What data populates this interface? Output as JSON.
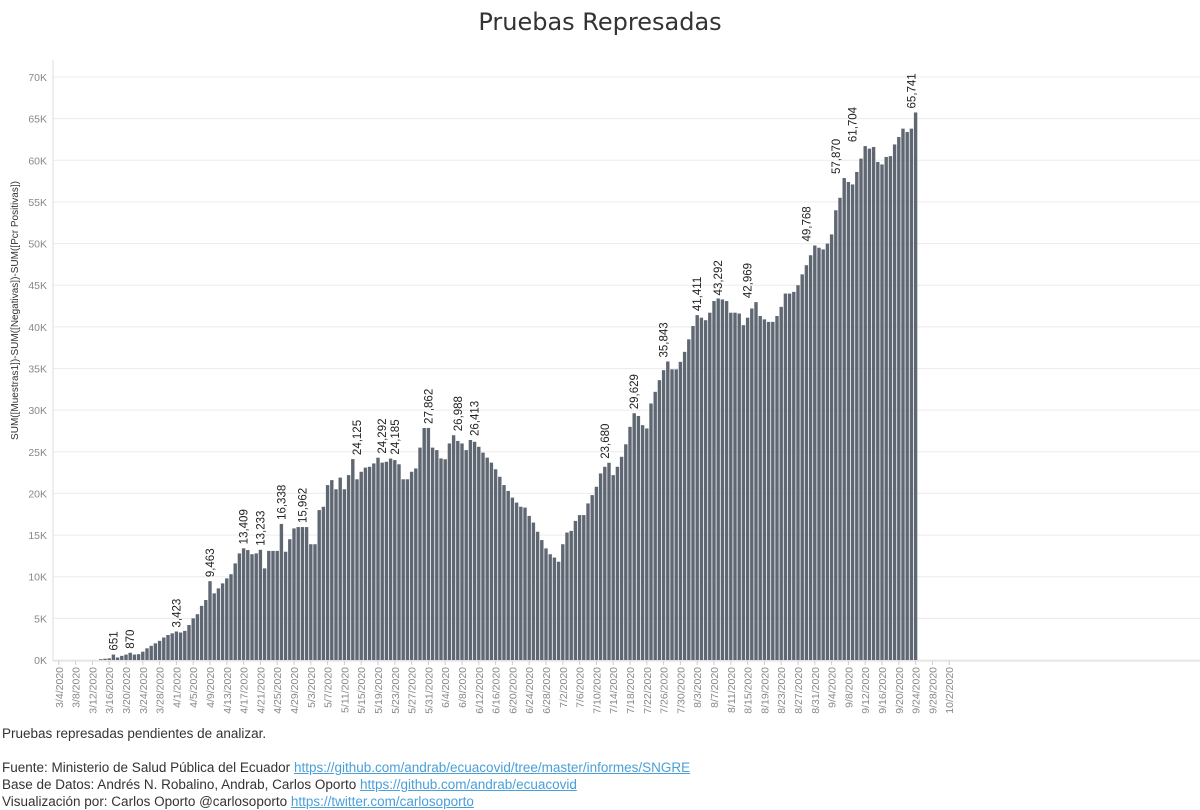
{
  "chart_data": {
    "type": "bar",
    "title": "Pruebas Represadas",
    "ylabel": "SUM([Muestras1])-SUM([Negativas])-SUM([Pcr Positivas])",
    "xlabel": "",
    "ylim": [
      0,
      70000
    ],
    "y_ticks": [
      "0K",
      "5K",
      "10K",
      "15K",
      "20K",
      "25K",
      "30K",
      "35K",
      "40K",
      "45K",
      "50K",
      "55K",
      "60K",
      "65K",
      "70K"
    ],
    "x_start": "3/4/2020",
    "x_tick_labels": [
      "3/4/2020",
      "3/8/2020",
      "3/12/2020",
      "3/16/2020",
      "3/20/2020",
      "3/24/2020",
      "3/28/2020",
      "4/1/2020",
      "4/5/2020",
      "4/9/2020",
      "4/13/2020",
      "4/17/2020",
      "4/21/2020",
      "4/25/2020",
      "4/29/2020",
      "5/3/2020",
      "5/7/2020",
      "5/11/2020",
      "5/15/2020",
      "5/19/2020",
      "5/23/2020",
      "5/27/2020",
      "5/31/2020",
      "6/4/2020",
      "6/8/2020",
      "6/12/2020",
      "6/16/2020",
      "6/20/2020",
      "6/24/2020",
      "6/28/2020",
      "7/2/2020",
      "7/6/2020",
      "7/10/2020",
      "7/14/2020",
      "7/18/2020",
      "7/22/2020",
      "7/26/2020",
      "7/30/2020",
      "8/3/2020",
      "8/7/2020",
      "8/11/2020",
      "8/15/2020",
      "8/19/2020",
      "8/23/2020",
      "8/27/2020",
      "8/31/2020",
      "9/4/2020",
      "9/8/2020",
      "9/12/2020",
      "9/16/2020",
      "9/20/2020",
      "9/24/2020",
      "9/28/2020",
      "10/2/2020"
    ],
    "grid": true,
    "color": "#5f6773",
    "values": [
      0,
      0,
      0,
      0,
      0,
      0,
      0,
      0,
      0,
      0,
      100,
      150,
      200,
      651,
      300,
      500,
      650,
      870,
      650,
      700,
      1000,
      1400,
      1700,
      2000,
      2300,
      2700,
      3000,
      3200,
      3423,
      3300,
      3500,
      4200,
      5000,
      5500,
      6500,
      7200,
      9463,
      8000,
      8600,
      9200,
      9800,
      10300,
      11600,
      12800,
      13409,
      13200,
      12700,
      12800,
      13233,
      11000,
      13100,
      13100,
      13100,
      16338,
      13000,
      14500,
      15800,
      15962,
      15962,
      15962,
      13900,
      13900,
      18000,
      18400,
      21000,
      21600,
      20500,
      21900,
      20500,
      22200,
      24125,
      21700,
      22600,
      23100,
      23200,
      23600,
      24292,
      23700,
      23800,
      24185,
      24000,
      23500,
      21700,
      21700,
      22600,
      23000,
      25500,
      27862,
      27862,
      25500,
      25200,
      24200,
      24100,
      26000,
      26988,
      26300,
      26000,
      25200,
      26413,
      26200,
      25600,
      24900,
      24300,
      23700,
      22900,
      22000,
      21000,
      20300,
      19500,
      18900,
      18400,
      18300,
      17300,
      16500,
      15400,
      14400,
      13400,
      12700,
      12300,
      11800,
      13900,
      15300,
      15500,
      16700,
      17400,
      17400,
      18800,
      19800,
      20800,
      22400,
      23200,
      23680,
      22200,
      23200,
      24400,
      25900,
      28000,
      29629,
      29300,
      28200,
      27800,
      30800,
      32200,
      33600,
      34800,
      35843,
      34900,
      34900,
      35800,
      37000,
      38500,
      40100,
      41411,
      41100,
      40800,
      41700,
      43100,
      43400,
      43292,
      43100,
      41700,
      41700,
      41600,
      40200,
      41100,
      42200,
      42969,
      41300,
      40900,
      40600,
      40600,
      41300,
      42400,
      44000,
      44000,
      44200,
      45000,
      46300,
      47400,
      48600,
      49768,
      49500,
      49300,
      50000,
      51100,
      54000,
      55500,
      57870,
      57400,
      57100,
      58600,
      60200,
      61704,
      61400,
      61600,
      59800,
      59500,
      60400,
      60500,
      61900,
      62800,
      63800,
      63400,
      63800,
      65741
    ],
    "labeled_points": [
      {
        "date": "3/17/2020",
        "value": 651,
        "label": "651"
      },
      {
        "date": "3/21/2020",
        "value": 870,
        "label": "870"
      },
      {
        "date": "4/1/2020",
        "value": 3423,
        "label": "3,423"
      },
      {
        "date": "4/9/2020",
        "value": 9463,
        "label": "9,463"
      },
      {
        "date": "4/17/2020",
        "value": 13409,
        "label": "13,409"
      },
      {
        "date": "4/21/2020",
        "value": 13233,
        "label": "13,233"
      },
      {
        "date": "4/26/2020",
        "value": 16338,
        "label": "16,338"
      },
      {
        "date": "5/1/2020",
        "value": 15962,
        "label": "15,962"
      },
      {
        "date": "5/14/2020",
        "value": 24125,
        "label": "24,125"
      },
      {
        "date": "5/20/2020",
        "value": 24292,
        "label": "24,292"
      },
      {
        "date": "5/23/2020",
        "value": 24185,
        "label": "24,185"
      },
      {
        "date": "5/31/2020",
        "value": 27862,
        "label": "27,862"
      },
      {
        "date": "6/7/2020",
        "value": 26988,
        "label": "26,988"
      },
      {
        "date": "6/11/2020",
        "value": 26413,
        "label": "26,413"
      },
      {
        "date": "7/12/2020",
        "value": 23680,
        "label": "23,680"
      },
      {
        "date": "7/19/2020",
        "value": 29629,
        "label": "29,629"
      },
      {
        "date": "7/26/2020",
        "value": 35843,
        "label": "35,843"
      },
      {
        "date": "8/3/2020",
        "value": 41411,
        "label": "41,411"
      },
      {
        "date": "8/8/2020",
        "value": 43292,
        "label": "43,292"
      },
      {
        "date": "8/15/2020",
        "value": 42969,
        "label": "42,969"
      },
      {
        "date": "8/29/2020",
        "value": 49768,
        "label": "49,768"
      },
      {
        "date": "9/5/2020",
        "value": 57870,
        "label": "57,870"
      },
      {
        "date": "9/9/2020",
        "value": 61704,
        "label": "61,704"
      },
      {
        "date": "9/23/2020",
        "value": 65741,
        "label": "65,741"
      }
    ]
  },
  "notes": {
    "subtitle": "Pruebas represadas pendientes de analizar.",
    "source_label": "Fuente: Ministerio de Salud Pública del Ecuador",
    "source_link": "https://github.com/andrab/ecuacovid/tree/master/informes/SNGRE",
    "db_label": "Base de Datos: Andrés N. Robalino, Andrab, Carlos Oporto",
    "db_link": "https://github.com/andrab/ecuacovid",
    "viz_label": "Visualización por: Carlos Oporto @carlosoporto",
    "viz_link": "https://twitter.com/carlosoporto"
  }
}
